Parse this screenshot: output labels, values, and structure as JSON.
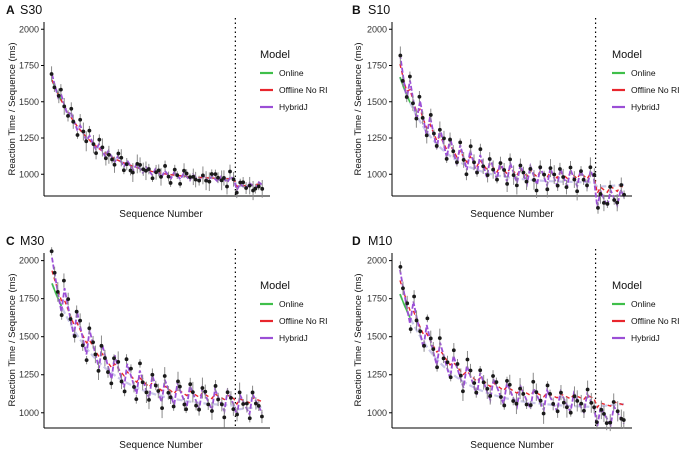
{
  "chart_data": [
    {
      "panel": "A",
      "title": "S30",
      "type": "scatter",
      "xlabel": "Sequence Number",
      "ylabel": "Reaction Time / Sequence (ms)",
      "ylim": [
        850,
        2050
      ],
      "yticks": [
        1000,
        1250,
        1500,
        1750,
        2000
      ],
      "n_sequences": 68,
      "block_len": 3,
      "break_after": 58,
      "legend": {
        "title": "Model",
        "entries": [
          "Online",
          "Offline No RI",
          "HybridJ"
        ],
        "colors": [
          "#3fbf4a",
          "#e8262d",
          "#9b4fd6"
        ]
      },
      "curve": {
        "start": 1650,
        "end_pre": 960,
        "end_post": 915,
        "tau": 13
      },
      "offsets": {
        "online": [
          0,
          0
        ],
        "offline": [
          0,
          0
        ],
        "hybrid": [
          -25,
          40
        ],
        "obs_saw": [
          -30,
          45
        ]
      },
      "annotation": "dotted vertical line marks break between training and test"
    },
    {
      "panel": "B",
      "title": "S10",
      "type": "scatter",
      "xlabel": "Sequence Number",
      "ylabel": "Reaction Time / Sequence (ms)",
      "ylim": [
        850,
        2050
      ],
      "yticks": [
        1000,
        1250,
        1500,
        1750,
        2000
      ],
      "n_sequences": 68,
      "block_len": 3,
      "break_after": 58,
      "legend": {
        "title": "Model",
        "entries": [
          "Online",
          "Offline No RI",
          "HybridJ"
        ],
        "colors": [
          "#3fbf4a",
          "#e8262d",
          "#9b4fd6"
        ]
      },
      "curve": {
        "start": 1670,
        "end_pre": 940,
        "end_post": 910,
        "tau": 11
      },
      "offsets": {
        "online": [
          0,
          0
        ],
        "offline": [
          40,
          150
        ],
        "hybrid": [
          -30,
          160
        ],
        "obs_saw": [
          -35,
          175
        ]
      },
      "post_shift": -110,
      "annotation": "dotted vertical line marks break between training and test"
    },
    {
      "panel": "C",
      "title": "M30",
      "type": "scatter",
      "xlabel": "Sequence Number",
      "ylabel": "Reaction Time / Sequence (ms)",
      "ylim": [
        900,
        2050
      ],
      "yticks": [
        1000,
        1250,
        1500,
        1750,
        2000
      ],
      "n_sequences": 68,
      "block_len": 4,
      "break_after": 58,
      "legend": {
        "title": "Model",
        "entries": [
          "Online",
          "Offline No RI",
          "HybridJ"
        ],
        "colors": [
          "#3fbf4a",
          "#e8262d",
          "#9b4fd6"
        ]
      },
      "curve": {
        "start": 1850,
        "end_pre": 1030,
        "end_post": 1020,
        "tau": 15
      },
      "offsets": {
        "online": [
          0,
          0
        ],
        "offline": [
          60,
          140
        ],
        "hybrid": [
          -40,
          170
        ],
        "obs_saw": [
          -50,
          190
        ]
      },
      "annotation": "dotted vertical line marks break between training and test"
    },
    {
      "panel": "D",
      "title": "M10",
      "type": "scatter",
      "xlabel": "Sequence Number",
      "ylabel": "Reaction Time / Sequence (ms)",
      "ylim": [
        900,
        2050
      ],
      "yticks": [
        1000,
        1250,
        1500,
        1750,
        2000
      ],
      "n_sequences": 68,
      "block_len": 4,
      "break_after": 58,
      "legend": {
        "title": "Model",
        "entries": [
          "Online",
          "Offline No RI",
          "HybridJ"
        ],
        "colors": [
          "#3fbf4a",
          "#e8262d",
          "#9b4fd6"
        ]
      },
      "curve": {
        "start": 1780,
        "end_pre": 1030,
        "end_post": 1040,
        "tau": 13
      },
      "offsets": {
        "online": [
          0,
          0
        ],
        "offline": [
          80,
          150
        ],
        "hybrid": [
          -40,
          160
        ],
        "obs_saw": [
          -45,
          180
        ]
      },
      "post_shift": -90,
      "annotation": "dotted vertical line marks break between training and test"
    }
  ]
}
